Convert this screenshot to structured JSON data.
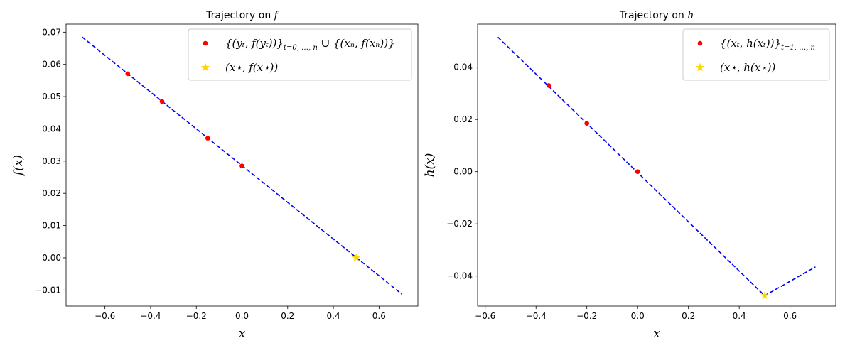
{
  "chart_data": [
    {
      "type": "line",
      "title_text": "Trajectory on",
      "title_math": "f",
      "xlabel": "x",
      "ylabel": "f(x)",
      "xlim": [
        -0.77,
        0.77
      ],
      "ylim": [
        -0.015,
        0.0725
      ],
      "xticks": [
        -0.6,
        -0.4,
        -0.2,
        0.0,
        0.2,
        0.4,
        0.6
      ],
      "xtick_labels": [
        "−0.6",
        "−0.4",
        "−0.2",
        "0.0",
        "0.2",
        "0.4",
        "0.6"
      ],
      "yticks": [
        -0.01,
        0.0,
        0.01,
        0.02,
        0.03,
        0.04,
        0.05,
        0.06,
        0.07
      ],
      "ytick_labels": [
        "−0.01",
        "0.00",
        "0.01",
        "0.02",
        "0.03",
        "0.04",
        "0.05",
        "0.06",
        "0.07"
      ],
      "legend_position": "upper right",
      "series": [
        {
          "kind": "dashed-line",
          "color": "#0000ff",
          "x": [
            -0.7,
            0.7
          ],
          "y": [
            0.0685,
            -0.0113
          ]
        },
        {
          "kind": "points",
          "color": "#ff0000",
          "name": "{(y_t, f(y_t))}_{t=0,…,n} ∪ {(x_n, f(x_n))}",
          "x": [
            -0.5,
            -0.35,
            -0.15,
            0.0
          ],
          "y": [
            0.0571,
            0.0485,
            0.0371,
            0.0285
          ]
        },
        {
          "kind": "star",
          "color": "#ffd700",
          "name": "(x⋆, f(x⋆))",
          "x": [
            0.5
          ],
          "y": [
            0.0
          ]
        }
      ],
      "legend": [
        {
          "marker": "dot",
          "color": "#ff0000",
          "text": "{(yₜ, f(yₜ))}",
          "sub": "t=0, …, n",
          "text2": " ∪ {(xₙ, f(xₙ))}"
        },
        {
          "marker": "star",
          "color": "#ffd700",
          "text": "(x⋆, f(x⋆))",
          "sub": "",
          "text2": ""
        }
      ]
    },
    {
      "type": "line",
      "title_text": "Trajectory on",
      "title_math": "h",
      "xlabel": "x",
      "ylabel": "h(x)",
      "xlim": [
        -0.63,
        0.78
      ],
      "ylim": [
        -0.0515,
        0.0565
      ],
      "xticks": [
        -0.6,
        -0.4,
        -0.2,
        0.0,
        0.2,
        0.4,
        0.6
      ],
      "xtick_labels": [
        "−0.6",
        "−0.4",
        "−0.2",
        "0.0",
        "0.2",
        "0.4",
        "0.6"
      ],
      "yticks": [
        -0.04,
        -0.02,
        0.0,
        0.02,
        0.04
      ],
      "ytick_labels": [
        "−0.04",
        "−0.02",
        "0.00",
        "0.02",
        "0.04"
      ],
      "legend_position": "upper right",
      "series": [
        {
          "kind": "dashed-line",
          "color": "#0000ff",
          "x": [
            -0.55,
            0.5,
            0.7
          ],
          "y": [
            0.0515,
            -0.0475,
            -0.0365
          ]
        },
        {
          "kind": "points",
          "color": "#ff0000",
          "name": "{(x_t, h(x_t))}_{t=1,…,n}",
          "x": [
            -0.35,
            -0.2,
            0.0
          ],
          "y": [
            0.033,
            0.0185,
            0.0
          ]
        },
        {
          "kind": "star",
          "color": "#ffd700",
          "name": "(x⋆, h(x⋆))",
          "x": [
            0.5
          ],
          "y": [
            -0.0475
          ]
        }
      ],
      "legend": [
        {
          "marker": "dot",
          "color": "#ff0000",
          "text": "{(xₜ, h(xₜ))}",
          "sub": "t=1, …, n",
          "text2": ""
        },
        {
          "marker": "star",
          "color": "#ffd700",
          "text": "(x⋆, h(x⋆))",
          "sub": "",
          "text2": ""
        }
      ]
    }
  ]
}
